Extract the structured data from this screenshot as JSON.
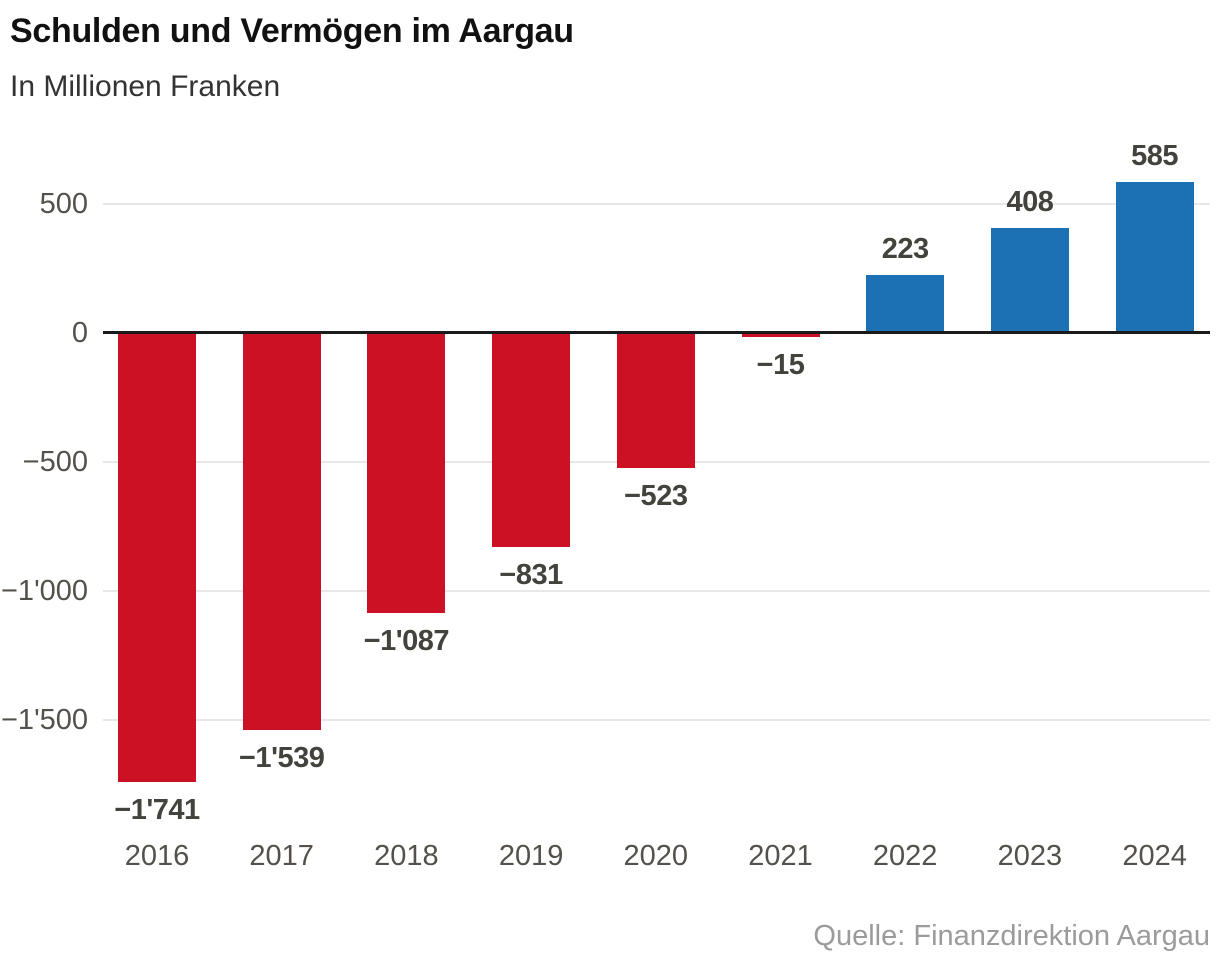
{
  "header": {
    "title": "Schulden und Vermögen im Aargau",
    "subtitle": "In Millionen Franken"
  },
  "source": {
    "label": "Quelle: Finanzdirektion Aargau"
  },
  "colors": {
    "negative_bar": "#cc1124",
    "positive_bar": "#1c71b5",
    "zero_line": "#1a1a1a",
    "gridline": "#e8e8e8",
    "value_label": "#44423d",
    "axis_label": "#54514c",
    "source_text": "#9b9b9b"
  },
  "chart_data": {
    "type": "bar",
    "title": "Schulden und Vermögen im Aargau",
    "subtitle": "In Millionen Franken",
    "unit": "Millionen Franken",
    "categories": [
      "2016",
      "2017",
      "2018",
      "2019",
      "2020",
      "2021",
      "2022",
      "2023",
      "2024"
    ],
    "values": [
      -1741,
      -1539,
      -1087,
      -831,
      -523,
      -15,
      223,
      408,
      585
    ],
    "value_labels": [
      "−1'741",
      "−1'539",
      "−1'087",
      "−831",
      "−523",
      "−15",
      "223",
      "408",
      "585"
    ],
    "y_ticks": [
      {
        "value": 500,
        "label": "500"
      },
      {
        "value": 0,
        "label": "0"
      },
      {
        "value": -500,
        "label": "−500"
      },
      {
        "value": -1000,
        "label": "−1'000"
      },
      {
        "value": -1500,
        "label": "−1'500"
      }
    ],
    "ylim": [
      -1850,
      650
    ],
    "xlabel": "",
    "ylabel": "",
    "grid": true,
    "legend_position": "none",
    "bar_color_rule": "negative values red, positive values blue"
  }
}
